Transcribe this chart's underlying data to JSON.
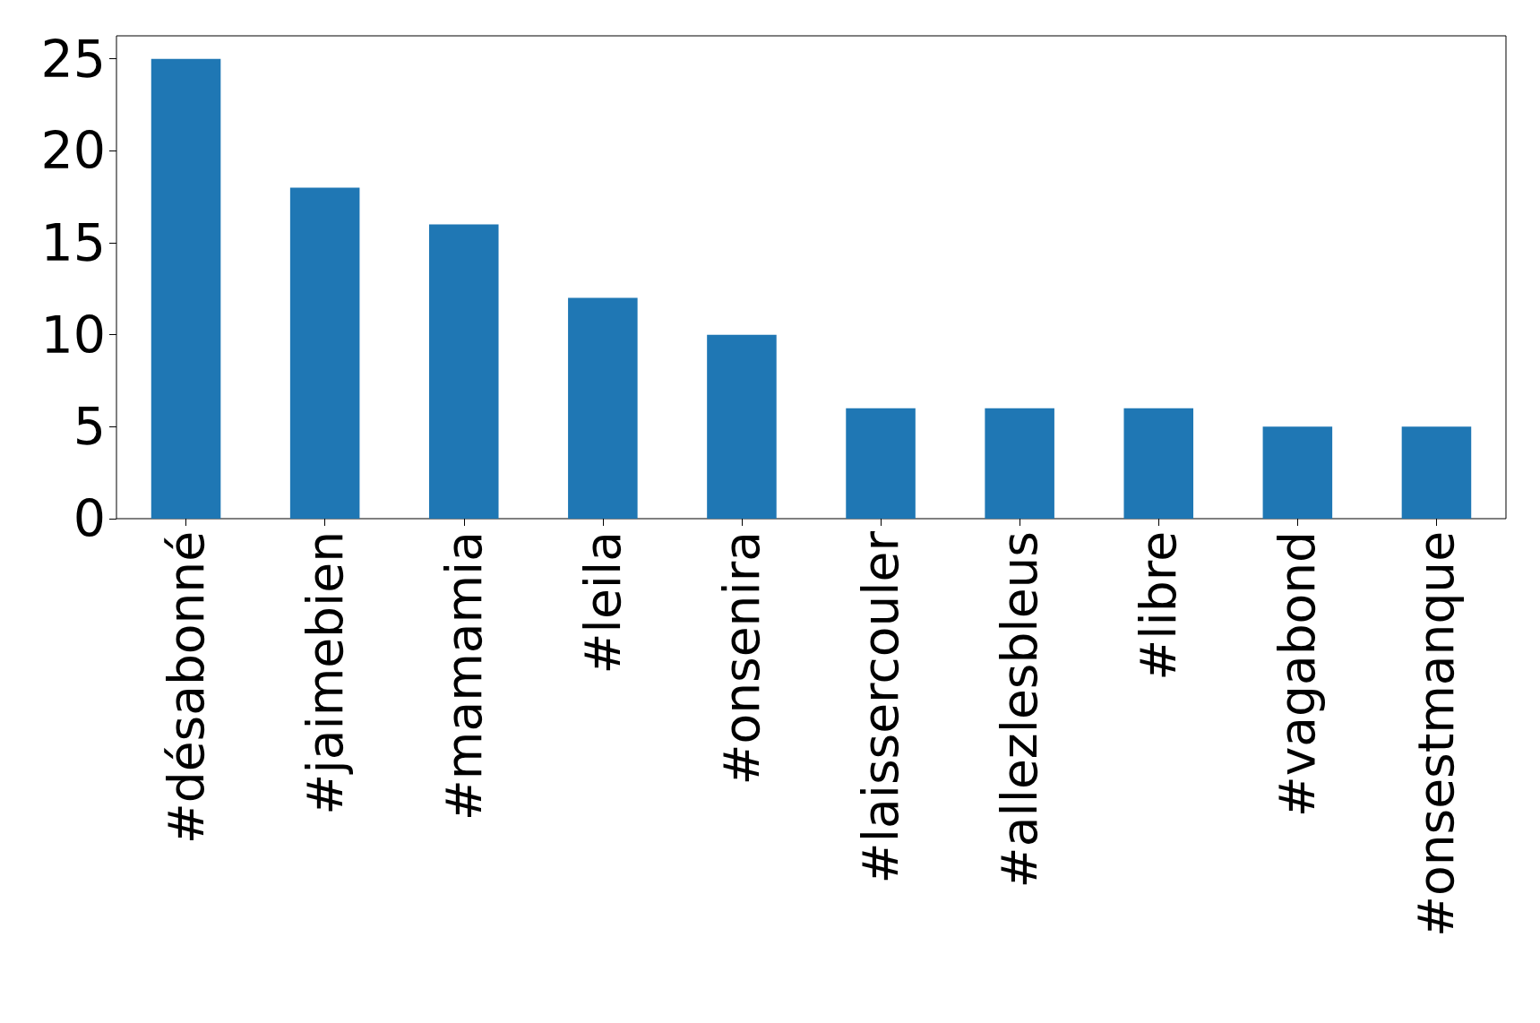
{
  "chart_data": {
    "type": "bar",
    "categories": [
      "#désabonné",
      "#jaimebien",
      "#mamamia",
      "#leila",
      "#onsenira",
      "#laissercouler",
      "#allezlesbleus",
      "#libre",
      "#vagabond",
      "#onsestmanque"
    ],
    "values": [
      25,
      18,
      16,
      12,
      10,
      6,
      6,
      6,
      5,
      5
    ],
    "color": "#1f77b4",
    "ylim": [
      0,
      26.25
    ],
    "yticks": [
      0,
      5,
      10,
      15,
      20,
      25
    ],
    "grid": false
  }
}
